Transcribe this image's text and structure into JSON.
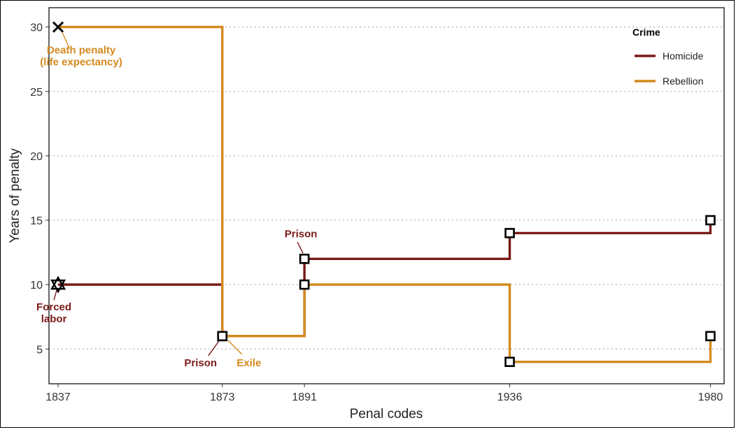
{
  "chart_data": {
    "type": "line",
    "step": true,
    "xlabel": "Penal codes",
    "ylabel": "Years of penalty",
    "x_ticks": [
      1837,
      1873,
      1891,
      1936,
      1980
    ],
    "y_ticks": [
      5,
      10,
      15,
      20,
      25,
      30
    ],
    "xlim": [
      1835,
      1983
    ],
    "ylim": [
      2.3,
      31.5
    ],
    "grid": "horizontal dotted",
    "legend": {
      "title": "Crime",
      "position": "top-right"
    },
    "series": [
      {
        "name": "Homicide",
        "color": "#7b1a1a",
        "x": [
          1837,
          1873,
          1891,
          1936,
          1980
        ],
        "y": [
          10,
          6,
          12,
          14,
          15
        ]
      },
      {
        "name": "Rebellion",
        "color": "#d48a1e",
        "x": [
          1837,
          1873,
          1891,
          1936,
          1980
        ],
        "y": [
          30,
          6,
          10,
          4,
          6
        ]
      }
    ],
    "annotations": [
      {
        "text_lines": [
          "Death penalty",
          "(life expectancy)"
        ],
        "series": "Rebellion",
        "x": 1837,
        "y": 30,
        "marker": "cross"
      },
      {
        "text_lines": [
          "Forced",
          "labor"
        ],
        "series": "Homicide",
        "x": 1837,
        "y": 10,
        "marker": "star"
      },
      {
        "text_lines": [
          "Prison"
        ],
        "series": "Homicide",
        "x": 1873,
        "y": 6,
        "marker": "square"
      },
      {
        "text_lines": [
          "Exile"
        ],
        "series": "Rebellion",
        "x": 1873,
        "y": 6,
        "marker": "square"
      },
      {
        "text_lines": [
          "Prison"
        ],
        "series": "Homicide",
        "x": 1891,
        "y": 12,
        "marker": "square"
      }
    ]
  }
}
